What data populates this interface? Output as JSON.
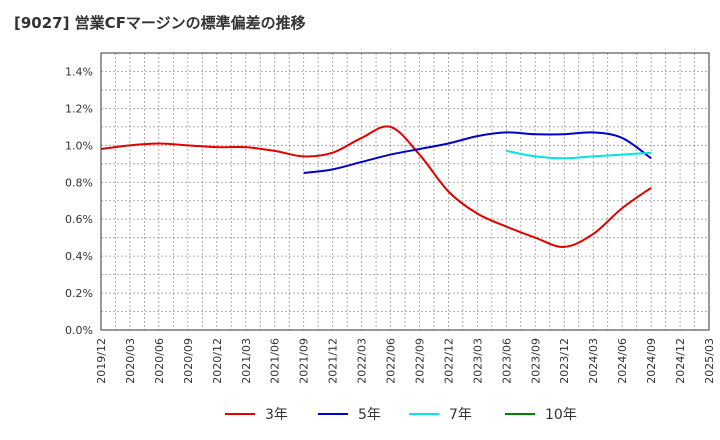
{
  "chart_data": {
    "type": "line",
    "title": "[9027]  営業CFマージンの標準偏差の推移",
    "xlabel": "",
    "ylabel": "",
    "ylim": [
      0,
      1.5
    ],
    "y_ticks": [
      "0.0%",
      "0.2%",
      "0.4%",
      "0.6%",
      "0.8%",
      "1.0%",
      "1.2%",
      "1.4%"
    ],
    "y_tick_values": [
      0,
      0.2,
      0.4,
      0.6,
      0.8,
      1.0,
      1.2,
      1.4
    ],
    "x_ticks": [
      "2019/12",
      "2020/03",
      "2020/06",
      "2020/09",
      "2020/12",
      "2021/03",
      "2021/06",
      "2021/09",
      "2021/12",
      "2022/03",
      "2022/06",
      "2022/09",
      "2022/12",
      "2023/03",
      "2023/06",
      "2023/09",
      "2023/12",
      "2024/03",
      "2024/06",
      "2024/09",
      "2024/12",
      "2025/03"
    ],
    "grid": true,
    "legend_position": "bottom",
    "series": [
      {
        "name": "3年",
        "color": "#e00000",
        "points": [
          [
            "2019/12",
            0.98
          ],
          [
            "2020/03",
            1.0
          ],
          [
            "2020/06",
            1.01
          ],
          [
            "2020/09",
            1.0
          ],
          [
            "2020/12",
            0.99
          ],
          [
            "2021/03",
            0.99
          ],
          [
            "2021/06",
            0.97
          ],
          [
            "2021/09",
            0.94
          ],
          [
            "2021/12",
            0.96
          ],
          [
            "2022/03",
            1.04
          ],
          [
            "2022/06",
            1.1
          ],
          [
            "2022/09",
            0.95
          ],
          [
            "2022/12",
            0.75
          ],
          [
            "2023/03",
            0.63
          ],
          [
            "2023/06",
            0.56
          ],
          [
            "2023/09",
            0.5
          ],
          [
            "2023/12",
            0.45
          ],
          [
            "2024/03",
            0.52
          ],
          [
            "2024/06",
            0.66
          ],
          [
            "2024/09",
            0.77
          ]
        ]
      },
      {
        "name": "5年",
        "color": "#0000cc",
        "points": [
          [
            "2021/09",
            0.85
          ],
          [
            "2021/12",
            0.87
          ],
          [
            "2022/03",
            0.91
          ],
          [
            "2022/06",
            0.95
          ],
          [
            "2022/09",
            0.98
          ],
          [
            "2022/12",
            1.01
          ],
          [
            "2023/03",
            1.05
          ],
          [
            "2023/06",
            1.07
          ],
          [
            "2023/09",
            1.06
          ],
          [
            "2023/12",
            1.06
          ],
          [
            "2024/03",
            1.07
          ],
          [
            "2024/06",
            1.04
          ],
          [
            "2024/09",
            0.93
          ]
        ]
      },
      {
        "name": "7年",
        "color": "#00e5e5",
        "points": [
          [
            "2023/06",
            0.97
          ],
          [
            "2023/09",
            0.94
          ],
          [
            "2023/12",
            0.93
          ],
          [
            "2024/03",
            0.94
          ],
          [
            "2024/06",
            0.95
          ],
          [
            "2024/09",
            0.96
          ]
        ]
      },
      {
        "name": "10年",
        "color": "#008000",
        "points": []
      }
    ]
  }
}
